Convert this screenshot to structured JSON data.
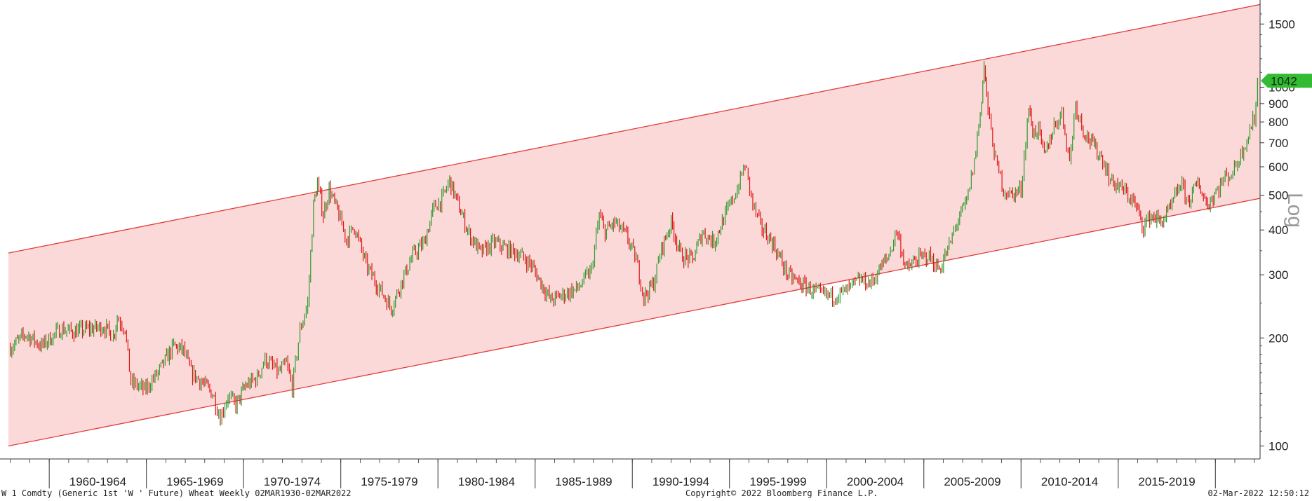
{
  "chart_data": {
    "type": "line",
    "title": "",
    "xlabel": "",
    "ylabel": "",
    "yscale": "log",
    "log_label": "Log",
    "ylim": [
      92,
      1750
    ],
    "xlim": [
      1957.9,
      2022.3
    ],
    "y_ticks": [
      100,
      200,
      300,
      400,
      500,
      600,
      700,
      800,
      900,
      1000,
      1500
    ],
    "x_period_labels": [
      "1960-1964",
      "1965-1969",
      "1970-1974",
      "1975-1979",
      "1980-1984",
      "1985-1989",
      "1990-1994",
      "1995-1999",
      "2000-2004",
      "2005-2009",
      "2010-2014",
      "2015-2019"
    ],
    "grid": false,
    "last_value_label": "1042",
    "colors": {
      "up": "#2e9a2e",
      "down": "#e01414",
      "channel_line": "#e03c3c",
      "channel_fill": "#fcd9d9",
      "last_value_badge": "#33bb33",
      "axis": "#333333",
      "log_label": "#9a9a9a"
    },
    "channel": {
      "upper": {
        "x": [
          1957.9,
          2022.3
        ],
        "y": [
          345,
          1700
        ]
      },
      "lower": {
        "x": [
          1957.9,
          2022.3
        ],
        "y": [
          100,
          490
        ]
      }
    },
    "series": [
      {
        "x": [
          1958.0,
          1958.8,
          1959.6,
          1960.2,
          1960.6,
          1961.2,
          1962.0,
          1962.8,
          1963.3,
          1963.5,
          1963.9,
          1964.2,
          1964.6,
          1964.9,
          1965.6,
          1966.4,
          1966.9,
          1967.3,
          1967.9,
          1968.4,
          1968.8,
          1969.2,
          1969.6,
          1970.1,
          1970.7,
          1971.1,
          1971.8,
          1972.2,
          1972.5,
          1972.9,
          1973.3,
          1973.6,
          1973.8,
          1974.1,
          1974.4,
          1974.9,
          1975.3,
          1975.7,
          1976.3,
          1976.9,
          1977.6,
          1978.1,
          1978.7,
          1979.3,
          1979.8,
          1980.2,
          1980.6,
          1981.1,
          1981.6,
          1982.2,
          1982.9,
          1983.5,
          1984.1,
          1984.8,
          1985.3,
          1985.8,
          1986.5,
          1987.2,
          1987.9,
          1988.3,
          1988.6,
          1989.1,
          1989.7,
          1990.2,
          1990.6,
          1991.1,
          1991.5,
          1992.0,
          1992.5,
          1993.1,
          1993.6,
          1994.2,
          1994.7,
          1995.4,
          1995.8,
          1996.2,
          1996.6,
          1997.2,
          1998.0,
          1998.8,
          1999.6,
          2000.3,
          2001.0,
          2001.7,
          2002.3,
          2002.7,
          2003.2,
          2003.6,
          2004.1,
          2004.6,
          2005.2,
          2005.8,
          2006.3,
          2006.7,
          2007.2,
          2007.6,
          2007.9,
          2008.1,
          2008.3,
          2008.7,
          2009.1,
          2009.5,
          2010.0,
          2010.4,
          2010.6,
          2010.9,
          2011.2,
          2011.7,
          2012.1,
          2012.5,
          2012.8,
          2013.2,
          2013.7,
          2014.2,
          2014.6,
          2015.2,
          2015.8,
          2016.3,
          2016.7,
          2017.2,
          2017.7,
          2018.2,
          2018.6,
          2019.1,
          2019.6,
          2020.1,
          2020.5,
          2020.9,
          2021.3,
          2021.7,
          2022.0,
          2022.17
        ],
        "y": [
          188,
          205,
          190,
          203,
          212,
          208,
          212,
          215,
          202,
          228,
          213,
          150,
          147,
          143,
          160,
          190,
          185,
          160,
          150,
          140,
          120,
          138,
          130,
          147,
          155,
          175,
          160,
          170,
          146,
          210,
          250,
          470,
          540,
          440,
          520,
          440,
          375,
          410,
          320,
          280,
          242,
          285,
          340,
          370,
          465,
          485,
          550,
          460,
          390,
          345,
          370,
          355,
          345,
          320,
          285,
          255,
          265,
          275,
          310,
          440,
          395,
          420,
          385,
          330,
          260,
          285,
          355,
          420,
          340,
          330,
          395,
          370,
          430,
          520,
          610,
          470,
          410,
          370,
          300,
          280,
          265,
          262,
          270,
          290,
          285,
          310,
          340,
          400,
          310,
          330,
          340,
          310,
          360,
          420,
          480,
          620,
          850,
          1150,
          860,
          620,
          520,
          500,
          520,
          880,
          750,
          760,
          640,
          780,
          850,
          620,
          900,
          760,
          690,
          630,
          550,
          520,
          480,
          410,
          440,
          420,
          460,
          540,
          480,
          540,
          470,
          520,
          560,
          580,
          650,
          740,
          820,
          1042
        ]
      }
    ]
  },
  "footer": {
    "left": "W 1 Comdty (Generic 1st 'W ' Future) Wheat  Weekly 02MAR1930-02MAR2022",
    "center": "Copyright© 2022 Bloomberg Finance L.P.",
    "right": "02-Mar-2022 12:50:12"
  }
}
